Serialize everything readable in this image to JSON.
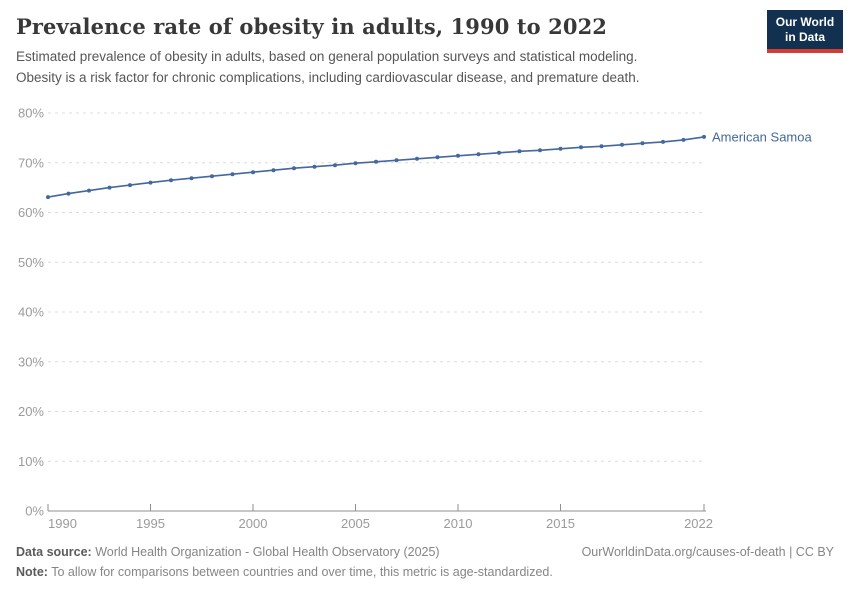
{
  "header": {
    "title": "Prevalence rate of obesity in adults, 1990 to 2022",
    "subtitle_line1": "Estimated prevalence of obesity in adults, based on general population surveys and statistical modeling.",
    "subtitle_line2": "Obesity is a risk factor for chronic complications, including cardiovascular disease, and premature death.",
    "logo": {
      "line1": "Our World",
      "line2": "in Data",
      "bg_color": "#12304F",
      "bar_color": "#D13D33"
    }
  },
  "chart_data": {
    "type": "line",
    "title": "Prevalence rate of obesity in adults, 1990 to 2022",
    "x": [
      1990,
      1991,
      1992,
      1993,
      1994,
      1995,
      1996,
      1997,
      1998,
      1999,
      2000,
      2001,
      2002,
      2003,
      2004,
      2005,
      2006,
      2007,
      2008,
      2009,
      2010,
      2011,
      2012,
      2013,
      2014,
      2015,
      2016,
      2017,
      2018,
      2019,
      2020,
      2021,
      2022
    ],
    "series": [
      {
        "name": "American Samoa",
        "color": "#44679E",
        "values": [
          63.1,
          63.8,
          64.4,
          65.0,
          65.5,
          66.0,
          66.5,
          66.9,
          67.3,
          67.7,
          68.1,
          68.5,
          68.9,
          69.2,
          69.5,
          69.9,
          70.2,
          70.5,
          70.8,
          71.1,
          71.4,
          71.7,
          72.0,
          72.3,
          72.5,
          72.8,
          73.1,
          73.3,
          73.6,
          73.9,
          74.2,
          74.6,
          75.2
        ]
      }
    ],
    "xlabel": "",
    "ylabel": "",
    "ylim": [
      0,
      80
    ],
    "ytick_step": 10,
    "ytick_suffix": "%",
    "xticks": [
      1990,
      1995,
      2000,
      2005,
      2010,
      2015,
      2022
    ],
    "grid": "horizontal-dashed",
    "legend_position": "end-of-line-label",
    "axis_color": "#8f8f8f",
    "grid_color": "#dcdcdc",
    "tick_label_color": "#9b9b9b"
  },
  "footer": {
    "data_source_label": "Data source:",
    "data_source_text": "World Health Organization - Global Health Observatory (2025)",
    "link_text": "OurWorldinData.org/causes-of-death | CC BY",
    "note_label": "Note:",
    "note_text": "To allow for comparisons between countries and over time, this metric is age-standardized."
  }
}
